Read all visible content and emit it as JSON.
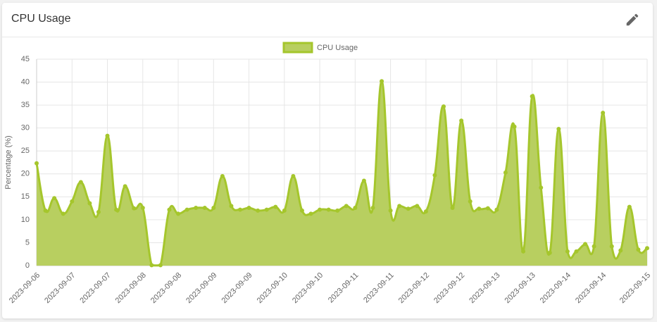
{
  "chart_data": {
    "type": "line",
    "fill": true,
    "title": "CPU Usage",
    "y_label": "Percentage (%)",
    "categories": [
      "2023-09-06",
      null,
      null,
      null,
      "2023-09-07",
      null,
      null,
      null,
      "2023-09-07",
      null,
      null,
      null,
      "2023-09-08",
      null,
      null,
      null,
      "2023-09-08",
      null,
      null,
      null,
      "2023-09-09",
      null,
      null,
      null,
      "2023-09-09",
      null,
      null,
      null,
      "2023-09-10",
      null,
      null,
      null,
      "2023-09-10",
      null,
      null,
      null,
      "2023-09-11",
      null,
      null,
      null,
      "2023-09-11",
      null,
      null,
      null,
      "2023-09-12",
      null,
      null,
      null,
      "2023-09-12",
      null,
      null,
      null,
      "2023-09-13",
      null,
      null,
      null,
      "2023-09-13",
      null,
      null,
      null,
      "2023-09-14",
      null,
      null,
      null,
      "2023-09-14",
      null,
      null,
      null,
      null,
      "2023-09-15"
    ],
    "series": [
      {
        "name": "CPU Usage",
        "color": "#a5c62c",
        "fill_color": "#b8cf60",
        "values": [
          22.3,
          12,
          14.7,
          11.3,
          14,
          18.2,
          13.6,
          11.7,
          28.3,
          12.2,
          17.3,
          12.5,
          12.6,
          0.1,
          0.1,
          12.2,
          11.3,
          12.2,
          12.6,
          12.6,
          12.6,
          19.5,
          13,
          12.2,
          12.6,
          12,
          12.2,
          12.8,
          12,
          19.5,
          12,
          11.3,
          12.2,
          12.2,
          12,
          13,
          12.6,
          18.5,
          12.6,
          40.2,
          12,
          13,
          12.4,
          13,
          11.8,
          19.7,
          34.7,
          12.6,
          31.6,
          14,
          12.4,
          12.5,
          12.2,
          20.3,
          30.3,
          3.1,
          36.9,
          17,
          2.8,
          29.8,
          3.1,
          3.1,
          4.7,
          4.2,
          33.3,
          4.2,
          3.3,
          12.8,
          3.5,
          3.8
        ]
      }
    ],
    "ylim": [
      0,
      45
    ],
    "yticks": [
      0,
      5,
      10,
      15,
      20,
      25,
      30,
      35,
      40,
      45
    ],
    "grid": true,
    "legend": "top"
  }
}
